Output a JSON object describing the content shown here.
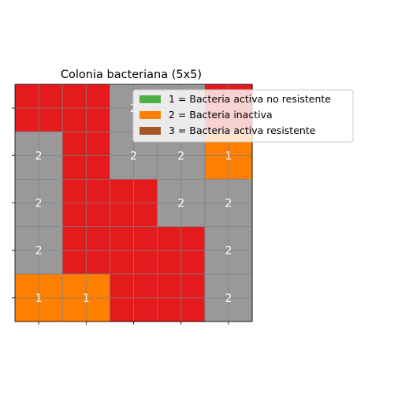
{
  "chart_data": {
    "type": "heatmap",
    "title": "Colonia bacteriana (5x5)",
    "xlabel": "",
    "ylabel": "",
    "rows": 5,
    "cols": 5,
    "grid": true,
    "values": [
      [
        0,
        0,
        2,
        2,
        0
      ],
      [
        2,
        0,
        2,
        2,
        1
      ],
      [
        2,
        0,
        0,
        2,
        2
      ],
      [
        2,
        0,
        0,
        0,
        2
      ],
      [
        1,
        1,
        0,
        0,
        2
      ]
    ],
    "cell_labels": [
      [
        "",
        "",
        "2",
        "",
        ""
      ],
      [
        "2",
        "",
        "2",
        "2",
        "1"
      ],
      [
        "2",
        "",
        "",
        "2",
        "2"
      ],
      [
        "2",
        "",
        "",
        "",
        "2"
      ],
      [
        "1",
        "1",
        "",
        "",
        "2"
      ]
    ],
    "colors": {
      "0": "#e41a1c",
      "1": "#ff7f00",
      "2": "#999999",
      "legend_1": "#4daf4a",
      "legend_2": "#ff7f00",
      "legend_3": "#a65628"
    },
    "legend_position": "upper-right",
    "legend": [
      "1 = Bacteria activa no resistente",
      "2 = Bacteria inactiva",
      "3 = Bacteria activa resistente"
    ]
  }
}
